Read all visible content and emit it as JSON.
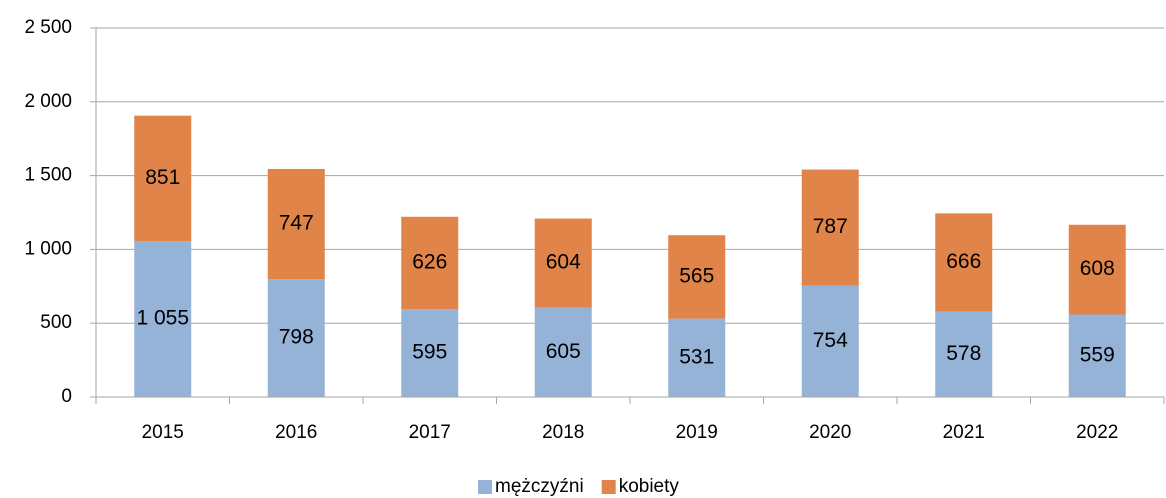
{
  "chart_data": {
    "type": "stacked-bar",
    "categories": [
      "2015",
      "2016",
      "2017",
      "2018",
      "2019",
      "2020",
      "2021",
      "2022"
    ],
    "series": [
      {
        "name": "mężczyźni",
        "color": "#95b3d7",
        "values": [
          1055,
          798,
          595,
          605,
          531,
          754,
          578,
          559
        ],
        "value_labels": [
          "1 055",
          "798",
          "595",
          "605",
          "531",
          "754",
          "578",
          "559"
        ]
      },
      {
        "name": "kobiety",
        "color": "#e0844a",
        "values": [
          851,
          747,
          626,
          604,
          565,
          787,
          666,
          608
        ]
      }
    ],
    "ylim": [
      0,
      2500
    ],
    "yticks": [
      0,
      500,
      {
        "value": 1000,
        "label": "1 000"
      },
      {
        "value": 1500,
        "label": "1 500"
      },
      {
        "value": 2000,
        "label": "2 000"
      },
      {
        "value": 2500,
        "label": "2 500"
      }
    ],
    "grid": true,
    "legend": "bottom"
  }
}
